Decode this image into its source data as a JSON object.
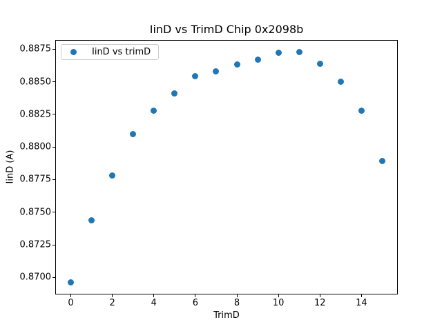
{
  "chart_data": {
    "type": "scatter",
    "title": "IinD vs TrimD Chip 0x2098b",
    "xlabel": "TrimD",
    "ylabel": "IinD (A)",
    "legend_label": "IinD vs trimD",
    "legend_position": "upper left",
    "marker_color": "#1f77b4",
    "spine_color": "#000000",
    "background": "#ffffff",
    "grid": false,
    "x": [
      0,
      1,
      2,
      3,
      4,
      5,
      6,
      7,
      8,
      9,
      10,
      11,
      12,
      13,
      14,
      15
    ],
    "y": [
      0.8696,
      0.8744,
      0.8778,
      0.881,
      0.8828,
      0.8841,
      0.8854,
      0.8858,
      0.8863,
      0.8867,
      0.8872,
      0.8873,
      0.8864,
      0.885,
      0.8828,
      0.8789
    ],
    "xlim": [
      -0.75,
      15.75
    ],
    "ylim": [
      0.8687,
      0.8882
    ],
    "xticks": [
      0,
      2,
      4,
      6,
      8,
      10,
      12,
      14
    ],
    "xtick_labels": [
      "0",
      "2",
      "4",
      "6",
      "8",
      "10",
      "12",
      "14"
    ],
    "yticks": [
      0.87,
      0.8725,
      0.875,
      0.8775,
      0.88,
      0.8825,
      0.885,
      0.8875
    ],
    "ytick_labels": [
      "0.8700",
      "0.8725",
      "0.8750",
      "0.8775",
      "0.8800",
      "0.8825",
      "0.8850",
      "0.8875"
    ]
  }
}
